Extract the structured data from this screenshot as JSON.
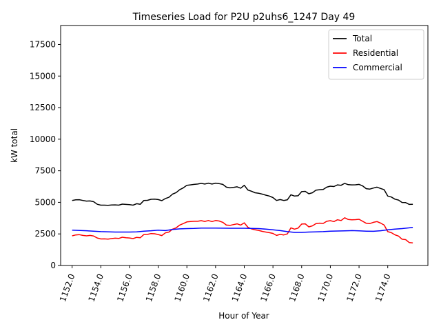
{
  "chart_data": {
    "type": "line",
    "title": "Timeseries Load for P2U p2uhs6_1247  Day 49",
    "xlabel": "Hour of Year",
    "ylabel": "kW total",
    "xlim": [
      1151.2,
      1176.8
    ],
    "ylim": [
      0,
      19000
    ],
    "xticks": [
      1152,
      1154,
      1156,
      1158,
      1160,
      1162,
      1164,
      1166,
      1168,
      1170,
      1172,
      1174
    ],
    "xtick_labels": [
      "1152.0",
      "1154.0",
      "1156.0",
      "1158.0",
      "1160.0",
      "1162.0",
      "1164.0",
      "1166.0",
      "1168.0",
      "1170.0",
      "1172.0",
      "1174.0"
    ],
    "yticks": [
      0,
      2500,
      5000,
      7500,
      10000,
      12500,
      15000,
      17500
    ],
    "ytick_labels": [
      "0",
      "2500",
      "5000",
      "7500",
      "10000",
      "12500",
      "15000",
      "17500"
    ],
    "grid": false,
    "legend_position": "top-right",
    "series": [
      {
        "name": "Total",
        "color": "#000000",
        "x": [
          1152.0,
          1152.25,
          1152.5,
          1152.75,
          1153.0,
          1153.25,
          1153.5,
          1153.75,
          1154.0,
          1154.25,
          1154.5,
          1154.75,
          1155.0,
          1155.25,
          1155.5,
          1155.75,
          1156.0,
          1156.25,
          1156.5,
          1156.75,
          1157.0,
          1157.25,
          1157.5,
          1157.75,
          1158.0,
          1158.25,
          1158.5,
          1158.75,
          1159.0,
          1159.25,
          1159.5,
          1159.75,
          1160.0,
          1160.25,
          1160.5,
          1160.75,
          1161.0,
          1161.25,
          1161.5,
          1161.75,
          1162.0,
          1162.25,
          1162.5,
          1162.75,
          1163.0,
          1163.25,
          1163.5,
          1163.75,
          1164.0,
          1164.25,
          1164.5,
          1164.75,
          1165.0,
          1165.25,
          1165.5,
          1165.75,
          1166.0,
          1166.25,
          1166.5,
          1166.75,
          1167.0,
          1167.25,
          1167.5,
          1167.75,
          1168.0,
          1168.25,
          1168.5,
          1168.75,
          1169.0,
          1169.25,
          1169.5,
          1169.75,
          1170.0,
          1170.25,
          1170.5,
          1170.75,
          1171.0,
          1171.25,
          1171.5,
          1171.75,
          1172.0,
          1172.25,
          1172.5,
          1172.75,
          1173.0,
          1173.25,
          1173.5,
          1173.75,
          1174.0,
          1174.25,
          1174.5,
          1174.75,
          1175.0,
          1175.25,
          1175.5,
          1175.75
        ],
        "values": [
          5150,
          5200,
          5210,
          5150,
          5100,
          5110,
          5050,
          4850,
          4780,
          4780,
          4760,
          4790,
          4800,
          4780,
          4860,
          4840,
          4820,
          4780,
          4890,
          4850,
          5150,
          5160,
          5240,
          5260,
          5220,
          5130,
          5300,
          5400,
          5650,
          5770,
          6000,
          6150,
          6350,
          6380,
          6420,
          6450,
          6500,
          6450,
          6520,
          6450,
          6520,
          6480,
          6420,
          6200,
          6150,
          6180,
          6230,
          6120,
          6350,
          5980,
          5880,
          5760,
          5720,
          5650,
          5570,
          5500,
          5380,
          5150,
          5220,
          5150,
          5200,
          5600,
          5500,
          5520,
          5850,
          5870,
          5680,
          5760,
          5970,
          6000,
          6020,
          6200,
          6280,
          6250,
          6380,
          6350,
          6500,
          6400,
          6380,
          6390,
          6420,
          6300,
          6080,
          6050,
          6130,
          6200,
          6100,
          6000,
          5500,
          5420,
          5250,
          5180,
          4990,
          4980,
          4840,
          4850
        ]
      },
      {
        "name": "Residential",
        "color": "#ff0000",
        "x": [
          1152.0,
          1152.25,
          1152.5,
          1152.75,
          1153.0,
          1153.25,
          1153.5,
          1153.75,
          1154.0,
          1154.25,
          1154.5,
          1154.75,
          1155.0,
          1155.25,
          1155.5,
          1155.75,
          1156.0,
          1156.25,
          1156.5,
          1156.75,
          1157.0,
          1157.25,
          1157.5,
          1157.75,
          1158.0,
          1158.25,
          1158.5,
          1158.75,
          1159.0,
          1159.25,
          1159.5,
          1159.75,
          1160.0,
          1160.25,
          1160.5,
          1160.75,
          1161.0,
          1161.25,
          1161.5,
          1161.75,
          1162.0,
          1162.25,
          1162.5,
          1162.75,
          1163.0,
          1163.25,
          1163.5,
          1163.75,
          1164.0,
          1164.25,
          1164.5,
          1164.75,
          1165.0,
          1165.25,
          1165.5,
          1165.75,
          1166.0,
          1166.25,
          1166.5,
          1166.75,
          1167.0,
          1167.25,
          1167.5,
          1167.75,
          1168.0,
          1168.25,
          1168.5,
          1168.75,
          1169.0,
          1169.25,
          1169.5,
          1169.75,
          1170.0,
          1170.25,
          1170.5,
          1170.75,
          1171.0,
          1171.25,
          1171.5,
          1171.75,
          1172.0,
          1172.25,
          1172.5,
          1172.75,
          1173.0,
          1173.25,
          1173.5,
          1173.75,
          1174.0,
          1174.25,
          1174.5,
          1174.75,
          1175.0,
          1175.25,
          1175.5,
          1175.75
        ],
        "values": [
          2350,
          2420,
          2440,
          2380,
          2350,
          2380,
          2330,
          2180,
          2100,
          2110,
          2090,
          2130,
          2160,
          2140,
          2240,
          2200,
          2180,
          2130,
          2230,
          2200,
          2450,
          2460,
          2530,
          2510,
          2450,
          2370,
          2580,
          2650,
          2880,
          2980,
          3200,
          3320,
          3450,
          3480,
          3500,
          3500,
          3550,
          3490,
          3560,
          3480,
          3560,
          3520,
          3420,
          3200,
          3180,
          3240,
          3300,
          3200,
          3380,
          3030,
          2900,
          2820,
          2780,
          2700,
          2650,
          2600,
          2540,
          2380,
          2460,
          2420,
          2500,
          2980,
          2880,
          2960,
          3280,
          3300,
          3060,
          3140,
          3320,
          3350,
          3330,
          3500,
          3550,
          3480,
          3620,
          3560,
          3780,
          3640,
          3620,
          3630,
          3660,
          3500,
          3340,
          3320,
          3420,
          3480,
          3360,
          3200,
          2680,
          2600,
          2430,
          2330,
          2080,
          2050,
          1820,
          1790
        ]
      },
      {
        "name": "Commercial",
        "color": "#0000ff",
        "x": [
          1152.0,
          1153.0,
          1154.0,
          1155.0,
          1156.0,
          1156.5,
          1157.0,
          1157.5,
          1158.0,
          1158.5,
          1159.0,
          1159.5,
          1160.0,
          1160.5,
          1161.0,
          1162.0,
          1163.0,
          1164.0,
          1164.5,
          1165.0,
          1165.5,
          1166.0,
          1166.5,
          1167.0,
          1167.5,
          1168.0,
          1168.5,
          1169.0,
          1169.5,
          1170.0,
          1170.5,
          1171.0,
          1171.5,
          1172.0,
          1172.5,
          1173.0,
          1173.5,
          1174.0,
          1174.5,
          1175.0,
          1175.5,
          1175.75
        ],
        "values": [
          2800,
          2750,
          2680,
          2650,
          2650,
          2660,
          2720,
          2750,
          2800,
          2760,
          2850,
          2900,
          2920,
          2930,
          2960,
          2960,
          2950,
          2950,
          2940,
          2920,
          2880,
          2820,
          2760,
          2680,
          2620,
          2620,
          2650,
          2660,
          2680,
          2720,
          2730,
          2740,
          2760,
          2740,
          2720,
          2710,
          2750,
          2820,
          2880,
          2920,
          2980,
          3020
        ]
      }
    ]
  }
}
